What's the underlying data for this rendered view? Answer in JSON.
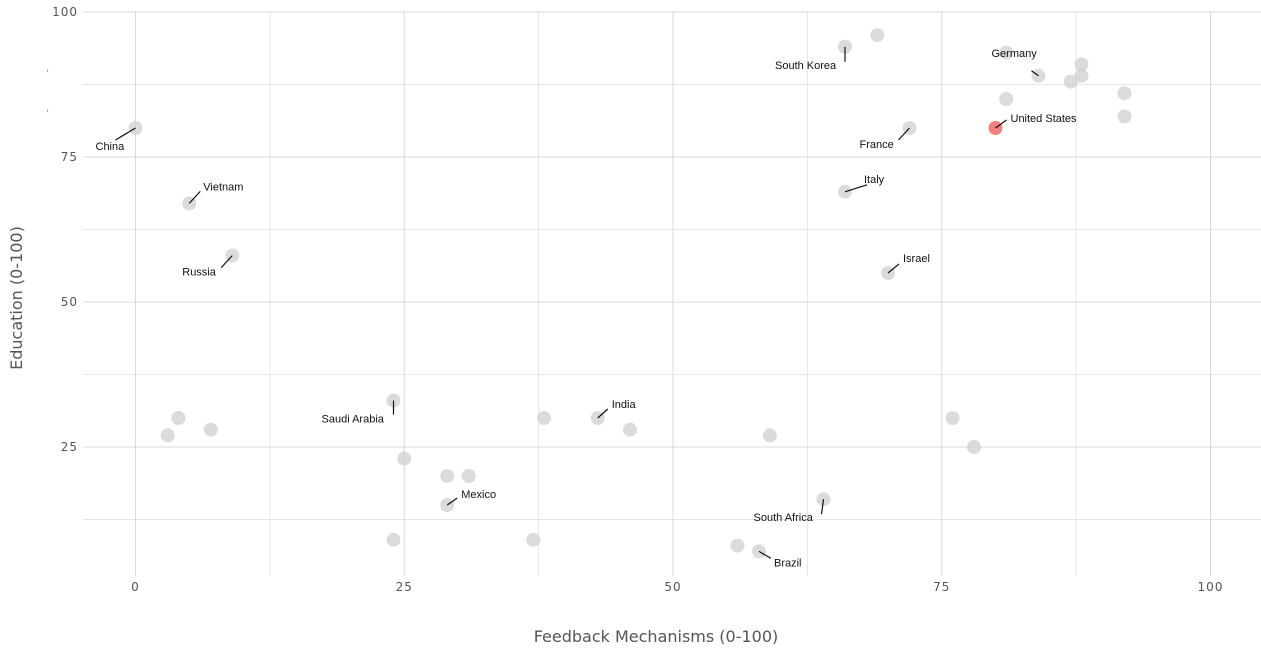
{
  "chart_data": {
    "type": "scatter",
    "xlabel": "Feedback Mechanisms (0-100)",
    "ylabel": "Education (0-100)",
    "xlim": [
      -5,
      105
    ],
    "ylim": [
      3,
      100
    ],
    "x_ticks": [
      0,
      25,
      50,
      75,
      100
    ],
    "y_ticks": [
      25,
      50,
      75,
      100
    ],
    "x_tick_labels": [
      "0",
      "25",
      "50",
      "75",
      "100"
    ],
    "y_tick_labels": [
      "25",
      "50",
      "75",
      "100"
    ],
    "x_minor": [
      12.5,
      37.5,
      62.5,
      87.5
    ],
    "y_minor": [
      12.5,
      37.5,
      62.5,
      87.5
    ],
    "grid": true,
    "legend": "none",
    "colors": {
      "default": "#cfcfcf",
      "highlight": "#f26b6b"
    },
    "points": [
      {
        "x": 0,
        "y": 80,
        "label": "China"
      },
      {
        "x": 5,
        "y": 67,
        "label": "Vietnam"
      },
      {
        "x": 9,
        "y": 58,
        "label": "Russia"
      },
      {
        "x": 4,
        "y": 30
      },
      {
        "x": 3,
        "y": 27
      },
      {
        "x": 7,
        "y": 28
      },
      {
        "x": 24,
        "y": 33,
        "label": "Saudi Arabia"
      },
      {
        "x": 25,
        "y": 23
      },
      {
        "x": 29,
        "y": 20
      },
      {
        "x": 31,
        "y": 20
      },
      {
        "x": 29,
        "y": 15,
        "label": "Mexico"
      },
      {
        "x": 24,
        "y": 9
      },
      {
        "x": 37,
        "y": 9
      },
      {
        "x": 38,
        "y": 30
      },
      {
        "x": 43,
        "y": 30,
        "label": "India"
      },
      {
        "x": 46,
        "y": 28
      },
      {
        "x": 59,
        "y": 27
      },
      {
        "x": 64,
        "y": 16,
        "label": "South Africa"
      },
      {
        "x": 56,
        "y": 8
      },
      {
        "x": 58,
        "y": 7,
        "label": "Brazil"
      },
      {
        "x": 66,
        "y": 94,
        "label": "South Korea"
      },
      {
        "x": 69,
        "y": 96
      },
      {
        "x": 72,
        "y": 80,
        "label": "France"
      },
      {
        "x": 66,
        "y": 69,
        "label": "Italy"
      },
      {
        "x": 70,
        "y": 55,
        "label": "Israel"
      },
      {
        "x": 76,
        "y": 30
      },
      {
        "x": 78,
        "y": 25
      },
      {
        "x": 80,
        "y": 80,
        "label": "United States",
        "highlight": true
      },
      {
        "x": 81,
        "y": 93
      },
      {
        "x": 84,
        "y": 89,
        "label": "Germany"
      },
      {
        "x": 81,
        "y": 85
      },
      {
        "x": 87,
        "y": 88
      },
      {
        "x": 88,
        "y": 91
      },
      {
        "x": 88,
        "y": 89
      },
      {
        "x": 92,
        "y": 86
      },
      {
        "x": 92,
        "y": 82
      }
    ]
  }
}
